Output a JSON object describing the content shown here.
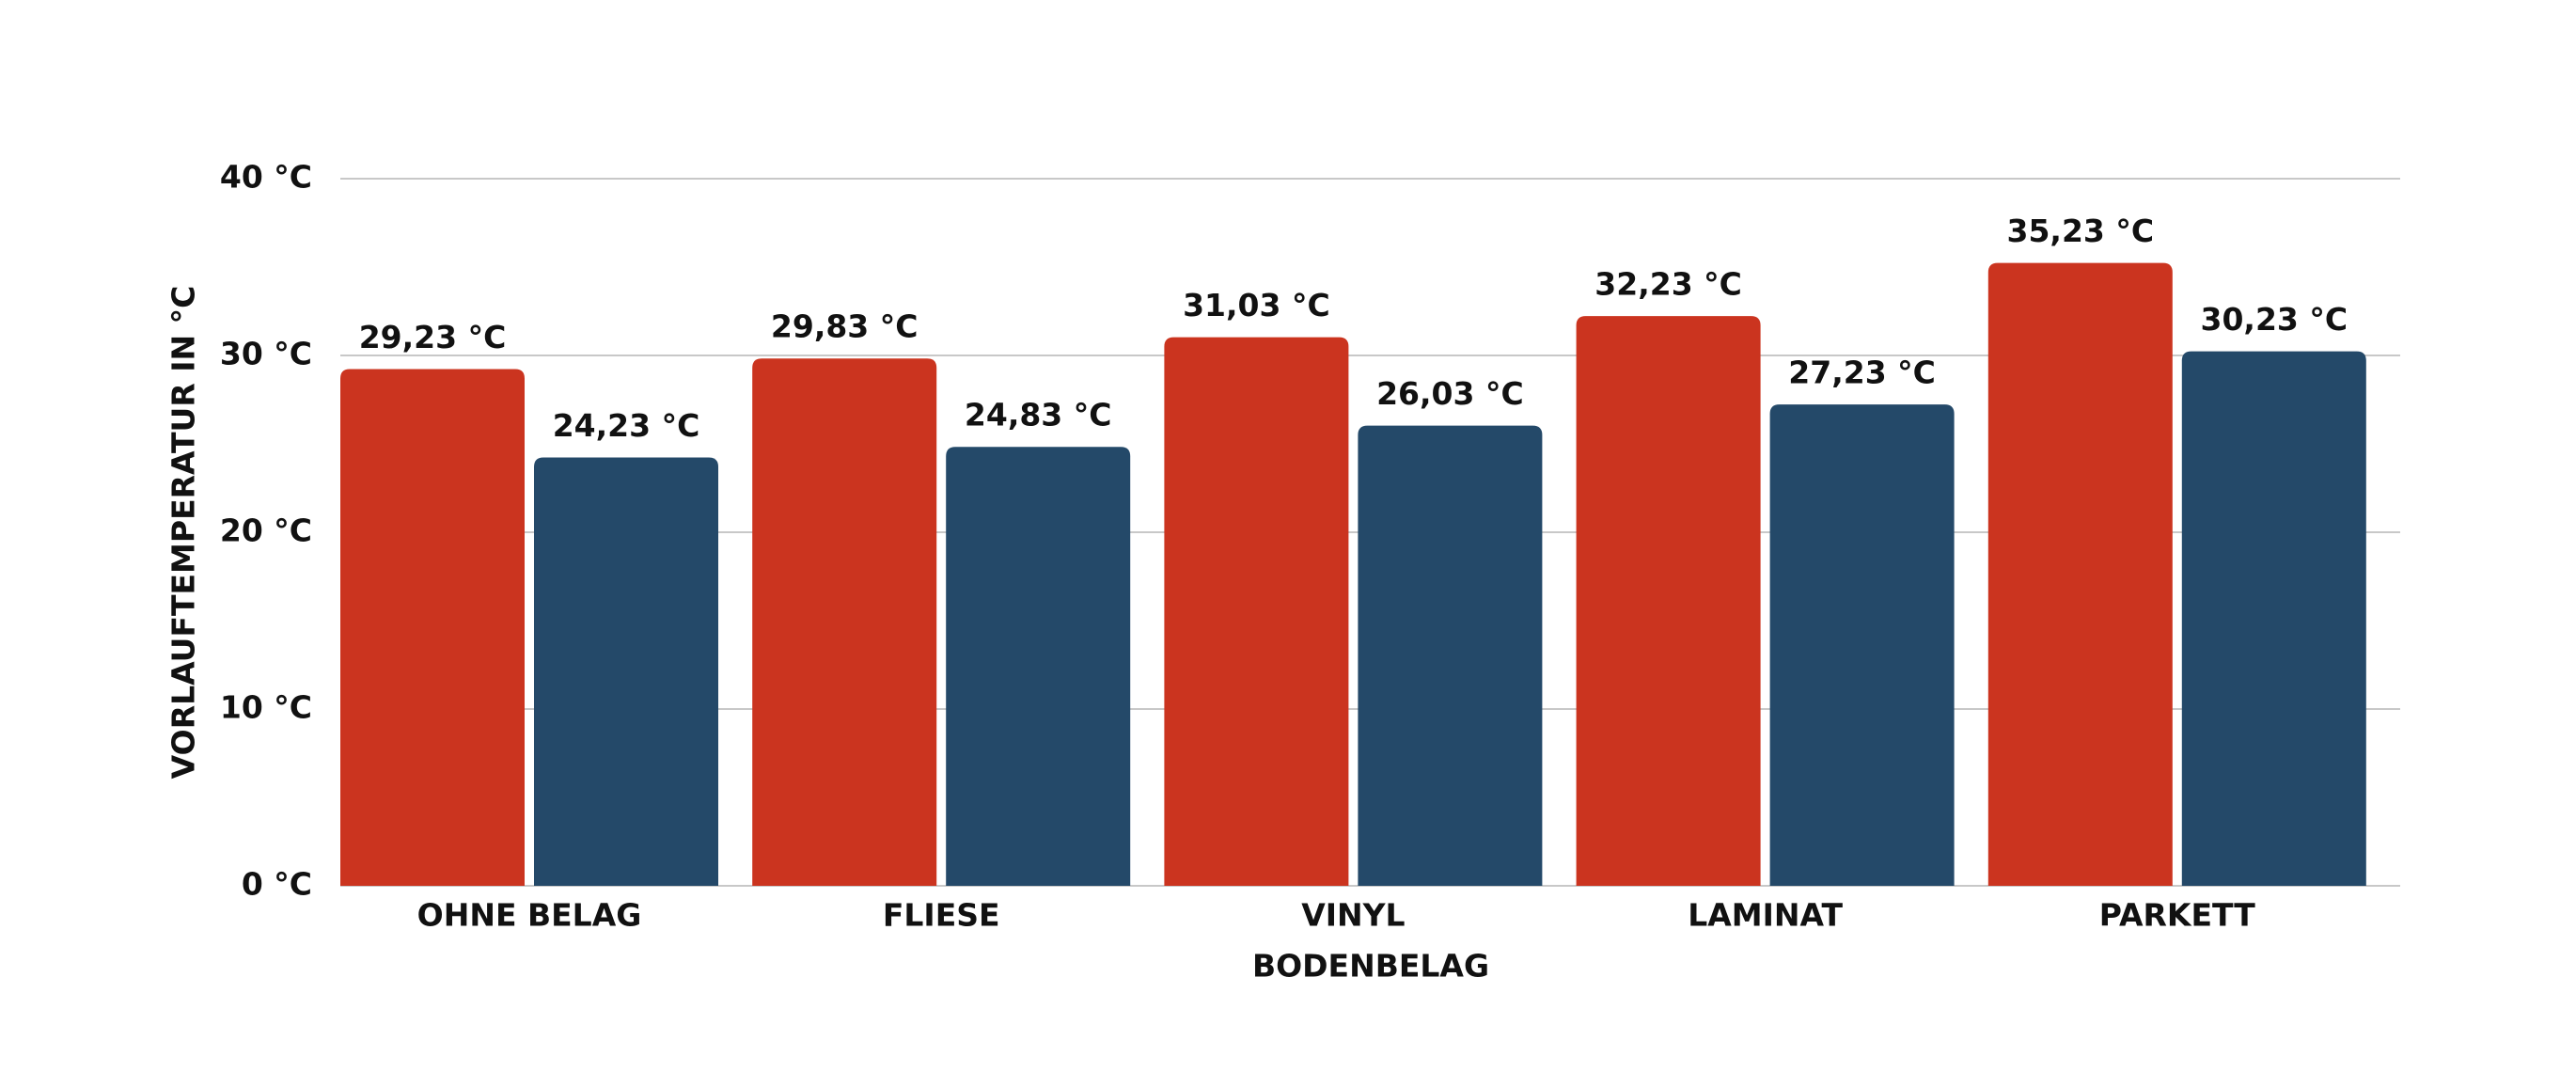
{
  "chart_data": {
    "type": "bar",
    "x_label": "BODENBELAG",
    "y_label": "VORLAUFTEMPERATUR IN °C",
    "categories": [
      "OHNE BELAG",
      "FLIESE",
      "VINYL",
      "LAMINAT",
      "PARKETT"
    ],
    "series": [
      {
        "color": "#cb341f",
        "values": [
          29.23,
          29.83,
          31.03,
          32.23,
          35.23
        ],
        "value_labels": [
          "29,23 °C",
          "29,83 °C",
          "31,03 °C",
          "32,23 °C",
          "35,23 °C"
        ]
      },
      {
        "color": "#244969",
        "values": [
          24.23,
          24.83,
          26.03,
          27.23,
          30.23
        ],
        "value_labels": [
          "24,23 °C",
          "24,83 °C",
          "26,03 °C",
          "27,23 °C",
          "30,23 °C"
        ]
      }
    ],
    "ylim": [
      0,
      40
    ],
    "yticks": [
      {
        "value": 0,
        "label": "0 °C"
      },
      {
        "value": 10,
        "label": "10 °C"
      },
      {
        "value": 20,
        "label": "20 °C"
      },
      {
        "value": 30,
        "label": "30 °C"
      },
      {
        "value": 40,
        "label": "40 °C"
      }
    ],
    "grid": true
  }
}
